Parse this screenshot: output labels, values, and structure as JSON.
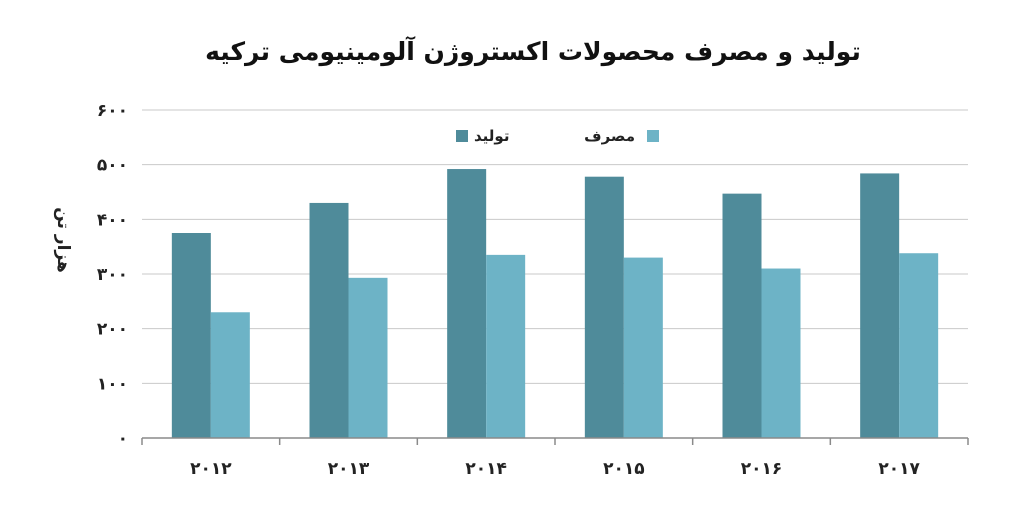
{
  "chart_data": {
    "type": "bar",
    "title": "تولید و مصرف محصولات اکستروژن آلومینیومی ترکیه",
    "ylabel": "هزار تن",
    "xlabel": "",
    "categories": [
      "۲۰۱۲",
      "۲۰۱۳",
      "۲۰۱۴",
      "۲۰۱۵",
      "۲۰۱۶",
      "۲۰۱۷"
    ],
    "series": [
      {
        "name": "تولید",
        "values": [
          375,
          430,
          492,
          478,
          447,
          484
        ],
        "color": "#4f8b9a"
      },
      {
        "name": "مصرف",
        "values": [
          230,
          293,
          335,
          330,
          310,
          338
        ],
        "color": "#6db3c6"
      }
    ],
    "ylim": [
      0,
      600
    ],
    "yticks": [
      0,
      100,
      200,
      300,
      400,
      500,
      600
    ],
    "ytick_labels": [
      "۰",
      "۱۰۰",
      "۲۰۰",
      "۳۰۰",
      "۴۰۰",
      "۵۰۰",
      "۶۰۰"
    ],
    "grid": true,
    "legend_position": "top-center"
  }
}
